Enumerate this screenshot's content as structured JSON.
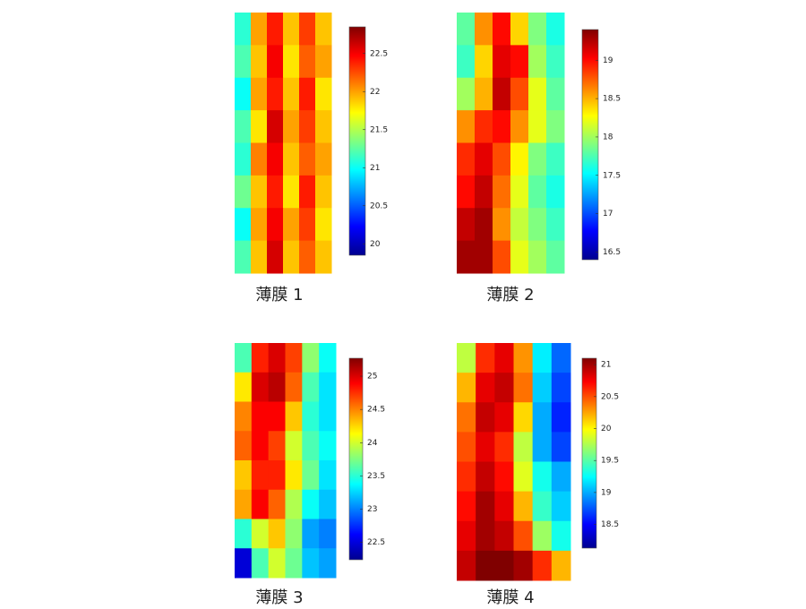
{
  "chart_data": [
    {
      "type": "heatmap",
      "title": "薄膜 1",
      "clim": [
        19.85,
        22.85
      ],
      "cticks": [
        20,
        20.5,
        21,
        21.5,
        22,
        22.5
      ],
      "z": [
        [
          21.1,
          22.0,
          22.4,
          21.9,
          22.3,
          21.9
        ],
        [
          21.2,
          21.9,
          22.5,
          21.8,
          22.2,
          22.0
        ],
        [
          21.0,
          22.0,
          22.4,
          21.9,
          22.4,
          21.8
        ],
        [
          21.2,
          21.8,
          22.6,
          22.0,
          22.3,
          21.9
        ],
        [
          21.1,
          22.1,
          22.5,
          21.9,
          22.2,
          22.0
        ],
        [
          21.3,
          21.9,
          22.4,
          21.8,
          22.4,
          21.9
        ],
        [
          21.0,
          22.0,
          22.5,
          22.0,
          22.3,
          21.8
        ],
        [
          21.2,
          21.9,
          22.6,
          21.9,
          22.2,
          21.9
        ]
      ]
    },
    {
      "type": "heatmap",
      "title": "薄膜 2",
      "clim": [
        16.4,
        19.4
      ],
      "cticks": [
        16.5,
        17,
        17.5,
        18,
        18.5,
        19
      ],
      "z": [
        [
          17.8,
          18.6,
          19.0,
          18.4,
          17.9,
          17.6
        ],
        [
          17.7,
          18.4,
          19.1,
          19.0,
          18.0,
          17.7
        ],
        [
          18.0,
          18.5,
          19.2,
          18.8,
          18.2,
          17.8
        ],
        [
          18.6,
          18.9,
          19.0,
          18.6,
          18.2,
          17.9
        ],
        [
          18.9,
          19.1,
          18.8,
          18.3,
          17.9,
          17.7
        ],
        [
          19.0,
          19.2,
          18.7,
          18.2,
          17.8,
          17.6
        ],
        [
          19.2,
          19.3,
          18.6,
          18.1,
          17.9,
          17.7
        ],
        [
          19.3,
          19.3,
          18.8,
          18.2,
          18.0,
          17.8
        ]
      ]
    },
    {
      "type": "heatmap",
      "title": "薄膜 3",
      "clim": [
        22.24,
        25.27
      ],
      "cticks": [
        22.5,
        23,
        23.5,
        24,
        24.5,
        25
      ],
      "z": [
        [
          23.6,
          24.8,
          25.0,
          24.7,
          23.8,
          23.4
        ],
        [
          24.2,
          25.0,
          25.1,
          24.6,
          23.6,
          23.3
        ],
        [
          24.5,
          24.9,
          24.9,
          24.3,
          23.5,
          23.3
        ],
        [
          24.6,
          24.9,
          24.7,
          24.0,
          23.6,
          23.4
        ],
        [
          24.3,
          24.8,
          24.8,
          24.2,
          23.7,
          23.3
        ],
        [
          24.4,
          24.9,
          24.6,
          23.9,
          23.4,
          23.2
        ],
        [
          23.5,
          24.0,
          24.3,
          23.8,
          23.1,
          23.0
        ],
        [
          22.5,
          23.6,
          24.0,
          23.7,
          23.2,
          23.1
        ]
      ]
    },
    {
      "type": "heatmap",
      "title": "薄膜 4",
      "clim": [
        18.13,
        21.1
      ],
      "cticks": [
        18.5,
        19,
        19.5,
        20,
        20.5,
        21
      ],
      "z": [
        [
          19.8,
          20.6,
          20.8,
          20.3,
          19.2,
          18.8
        ],
        [
          20.2,
          20.8,
          20.9,
          20.4,
          19.1,
          18.7
        ],
        [
          20.4,
          20.9,
          20.8,
          20.1,
          19.0,
          18.6
        ],
        [
          20.5,
          20.8,
          20.6,
          19.8,
          19.0,
          18.7
        ],
        [
          20.6,
          20.9,
          20.7,
          19.9,
          19.3,
          19.0
        ],
        [
          20.7,
          21.0,
          20.8,
          20.2,
          19.4,
          19.1
        ],
        [
          20.8,
          21.0,
          20.9,
          20.5,
          19.7,
          19.3
        ],
        [
          20.9,
          21.1,
          21.1,
          21.0,
          20.6,
          20.2
        ]
      ]
    }
  ]
}
